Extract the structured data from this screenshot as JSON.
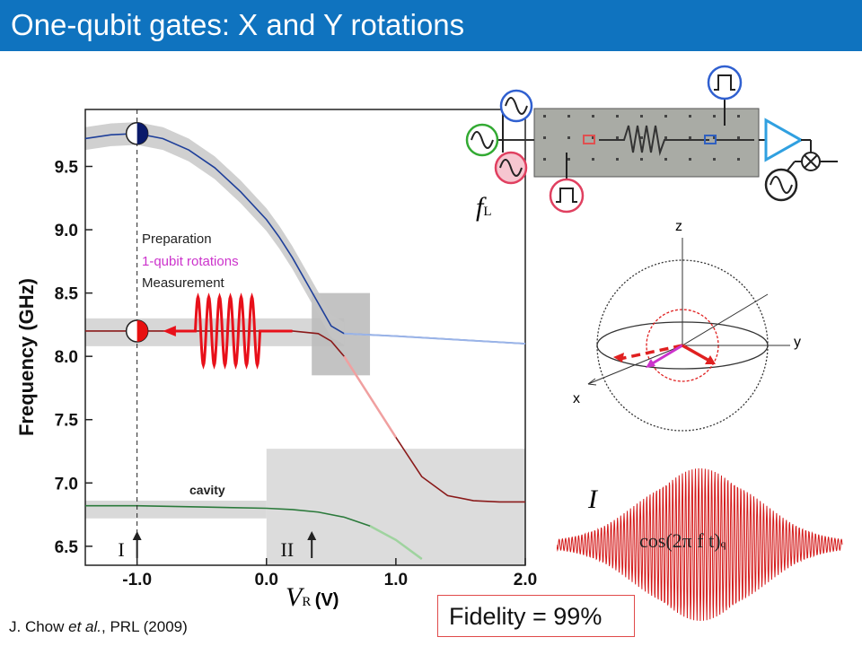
{
  "title": "One-qubit gates: X and Y rotations",
  "citation": {
    "authors": "J. Chow",
    "etal": "et al.",
    "rest": ", PRL (2009)"
  },
  "fidelity": "Fidelity = 99%",
  "colors": {
    "title_bar": "#0f73bf",
    "pulse_red": "#e8101a",
    "rotation_magenta": "#cc33cc",
    "blue_band": "#1e3f9a",
    "green_band": "#2b7a3b"
  },
  "legend": {
    "preparation": "Preparation",
    "rotations": "1-qubit rotations",
    "measurement": "Measurement"
  },
  "cavity_label": "cavity",
  "region_labels": [
    "I",
    "II"
  ],
  "bloch": {
    "z": "z",
    "y": "y",
    "x": "x"
  },
  "fL_label": "f",
  "fL_sub": "L",
  "envelope": {
    "I_label": "I",
    "cos_label": "cos(2π f t)",
    "cos_sub": "q"
  },
  "circuit_icons": [
    "sine-source-blue",
    "sine-source-green",
    "sine-source-red",
    "pulse-blue",
    "pulse-red",
    "amplifier-triangle",
    "mixer",
    "sine-source-black"
  ],
  "chart_data": {
    "type": "line",
    "ylabel": "Frequency (GHz)",
    "xlabel_symbol": "V",
    "xlabel_sub": "R",
    "xlabel_unit": "(V)",
    "x_ticks": [
      "-1.0",
      "0.0",
      "1.0",
      "2.0"
    ],
    "y_ticks": [
      "6.5",
      "7.0",
      "7.5",
      "8.0",
      "8.5",
      "9.0",
      "9.5"
    ],
    "xlim": [
      -1.4,
      2.0
    ],
    "ylim": [
      6.35,
      9.95
    ],
    "series": [
      {
        "color": "#1e3f9a",
        "points": [
          [
            -1.4,
            9.72
          ],
          [
            -1.2,
            9.75
          ],
          [
            -1.0,
            9.76
          ],
          [
            -0.8,
            9.72
          ],
          [
            -0.6,
            9.63
          ],
          [
            -0.4,
            9.49
          ],
          [
            -0.2,
            9.3
          ],
          [
            0.0,
            9.08
          ],
          [
            0.1,
            8.94
          ],
          [
            0.2,
            8.78
          ],
          [
            0.3,
            8.6
          ],
          [
            0.4,
            8.42
          ],
          [
            0.5,
            8.24
          ],
          [
            0.6,
            8.18
          ],
          [
            0.8,
            8.17
          ],
          [
            1.0,
            8.16
          ],
          [
            1.5,
            8.13
          ],
          [
            2.0,
            8.1
          ]
        ]
      },
      {
        "color": "#8a1a1a",
        "points": [
          [
            -1.4,
            8.2
          ],
          [
            -1.0,
            8.2
          ],
          [
            -0.5,
            8.2
          ],
          [
            0.0,
            8.2
          ],
          [
            0.2,
            8.2
          ],
          [
            0.4,
            8.18
          ],
          [
            0.5,
            8.12
          ],
          [
            0.6,
            8.0
          ],
          [
            0.8,
            7.68
          ],
          [
            1.0,
            7.36
          ],
          [
            1.2,
            7.05
          ],
          [
            1.4,
            6.9
          ],
          [
            1.6,
            6.86
          ],
          [
            1.8,
            6.85
          ],
          [
            2.0,
            6.85
          ]
        ]
      },
      {
        "color": "#2b7a3b",
        "points": [
          [
            -1.4,
            6.82
          ],
          [
            -1.0,
            6.82
          ],
          [
            -0.5,
            6.81
          ],
          [
            0.0,
            6.8
          ],
          [
            0.2,
            6.79
          ],
          [
            0.4,
            6.77
          ],
          [
            0.6,
            6.73
          ],
          [
            0.8,
            6.66
          ],
          [
            1.0,
            6.55
          ],
          [
            1.2,
            6.4
          ]
        ]
      }
    ],
    "markers": [
      {
        "x": -1.0,
        "y": 9.76
      },
      {
        "x": -1.0,
        "y": 8.2
      }
    ]
  }
}
